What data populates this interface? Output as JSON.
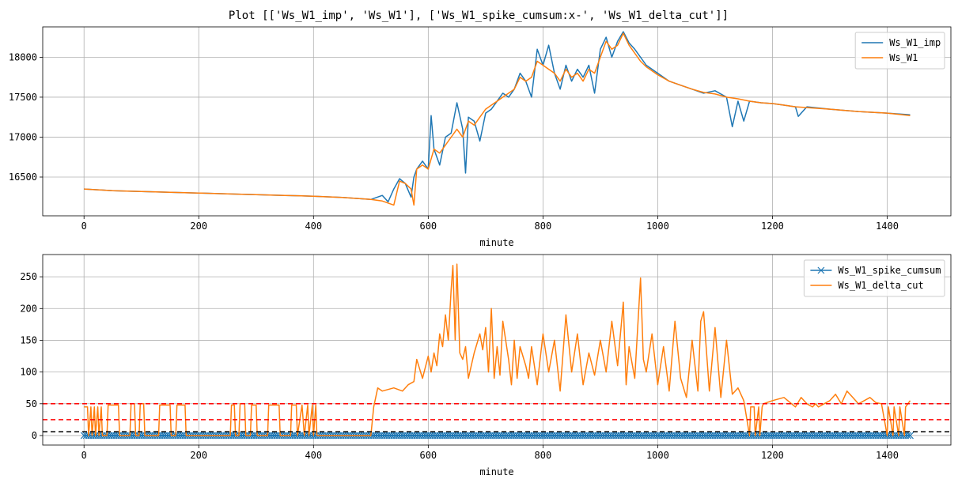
{
  "figure_title": "Plot [['Ws_W1_imp', 'Ws_W1'], ['Ws_W1_spike_cumsum:x-', 'Ws_W1_delta_cut']]",
  "colors": {
    "blue": "#1f77b4",
    "orange": "#ff7f0e",
    "red": "#ff0000",
    "black": "#000000",
    "grid": "#b0b0b0"
  },
  "chart_data": [
    {
      "type": "line",
      "xlabel": "minute",
      "ylabel": "",
      "xlim": [
        -72,
        1511
      ],
      "ylim": [
        16015,
        18380
      ],
      "xticks": [
        0,
        200,
        400,
        600,
        800,
        1000,
        1200,
        1400
      ],
      "yticks": [
        16500,
        17000,
        17500,
        18000
      ],
      "grid": true,
      "legend_position": "top-right",
      "series": [
        {
          "name": "Ws_W1_imp",
          "color": "blue",
          "x": [
            0,
            50,
            100,
            150,
            200,
            250,
            300,
            350,
            400,
            450,
            500,
            520,
            530,
            540,
            550,
            560,
            570,
            575,
            580,
            590,
            600,
            605,
            610,
            620,
            630,
            640,
            650,
            660,
            665,
            670,
            680,
            690,
            700,
            710,
            720,
            730,
            740,
            750,
            760,
            770,
            780,
            790,
            800,
            810,
            820,
            830,
            840,
            850,
            860,
            870,
            880,
            890,
            900,
            910,
            920,
            930,
            940,
            950,
            960,
            970,
            980,
            1000,
            1020,
            1040,
            1060,
            1080,
            1100,
            1120,
            1130,
            1140,
            1150,
            1160,
            1180,
            1200,
            1220,
            1240,
            1245,
            1260,
            1300,
            1350,
            1400,
            1440
          ],
          "values": [
            16350,
            16330,
            16320,
            16310,
            16300,
            16290,
            16280,
            16270,
            16260,
            16245,
            16220,
            16270,
            16190,
            16350,
            16480,
            16420,
            16250,
            16500,
            16600,
            16700,
            16600,
            17270,
            16850,
            16650,
            17000,
            17050,
            17430,
            17100,
            16550,
            17250,
            17200,
            16950,
            17300,
            17350,
            17450,
            17550,
            17500,
            17600,
            17800,
            17700,
            17500,
            18100,
            17900,
            18150,
            17800,
            17600,
            17900,
            17700,
            17850,
            17750,
            17900,
            17550,
            18100,
            18250,
            18000,
            18200,
            18320,
            18180,
            18100,
            18000,
            17900,
            17800,
            17700,
            17650,
            17600,
            17550,
            17580,
            17500,
            17130,
            17450,
            17200,
            17450,
            17430,
            17420,
            17400,
            17380,
            17260,
            17380,
            17350,
            17320,
            17300,
            17280
          ]
        },
        {
          "name": "Ws_W1",
          "color": "orange",
          "x": [
            0,
            50,
            100,
            150,
            200,
            250,
            300,
            350,
            400,
            450,
            500,
            520,
            540,
            550,
            560,
            570,
            575,
            580,
            590,
            600,
            610,
            620,
            630,
            640,
            650,
            660,
            670,
            680,
            690,
            700,
            710,
            720,
            730,
            740,
            750,
            760,
            770,
            780,
            790,
            800,
            810,
            820,
            830,
            840,
            850,
            860,
            870,
            880,
            890,
            900,
            910,
            920,
            930,
            940,
            950,
            960,
            970,
            980,
            1000,
            1020,
            1040,
            1060,
            1080,
            1100,
            1120,
            1140,
            1160,
            1180,
            1200,
            1220,
            1240,
            1260,
            1300,
            1350,
            1400,
            1440
          ],
          "values": [
            16350,
            16330,
            16320,
            16310,
            16300,
            16290,
            16280,
            16270,
            16260,
            16245,
            16220,
            16200,
            16150,
            16450,
            16420,
            16350,
            16150,
            16600,
            16650,
            16600,
            16850,
            16800,
            16900,
            17000,
            17100,
            17000,
            17200,
            17150,
            17250,
            17350,
            17400,
            17450,
            17500,
            17550,
            17600,
            17750,
            17700,
            17750,
            17950,
            17900,
            17850,
            17800,
            17700,
            17850,
            17750,
            17800,
            17700,
            17850,
            17800,
            18000,
            18200,
            18100,
            18150,
            18300,
            18150,
            18050,
            17950,
            17880,
            17780,
            17700,
            17650,
            17600,
            17560,
            17540,
            17500,
            17480,
            17450,
            17430,
            17420,
            17400,
            17380,
            17370,
            17350,
            17320,
            17300,
            17270
          ]
        }
      ]
    },
    {
      "type": "line",
      "xlabel": "minute",
      "ylabel": "",
      "xlim": [
        -72,
        1511
      ],
      "ylim": [
        -15,
        285
      ],
      "xticks": [
        0,
        200,
        400,
        600,
        800,
        1000,
        1200,
        1400
      ],
      "yticks": [
        0,
        50,
        100,
        150,
        200,
        250
      ],
      "grid": true,
      "legend_position": "top-right",
      "hlines": [
        {
          "y": 50,
          "color": "red",
          "style": "dashed"
        },
        {
          "y": 25,
          "color": "red",
          "style": "dashed"
        },
        {
          "y": 6,
          "color": "black",
          "style": "dashed"
        }
      ],
      "series": [
        {
          "name": "Ws_W1_spike_cumsum",
          "color": "blue",
          "marker": "x",
          "x_start": 0,
          "x_end": 1440,
          "x_step": 4,
          "value": 0
        },
        {
          "name": "Ws_W1_delta_cut",
          "color": "orange",
          "x": [
            0,
            6,
            8,
            12,
            14,
            18,
            20,
            24,
            26,
            30,
            32,
            40,
            42,
            60,
            62,
            80,
            82,
            88,
            90,
            96,
            98,
            104,
            106,
            130,
            132,
            150,
            152,
            160,
            162,
            176,
            178,
            182,
            184,
            255,
            257,
            262,
            264,
            270,
            272,
            280,
            282,
            290,
            292,
            300,
            302,
            320,
            322,
            340,
            342,
            360,
            362,
            370,
            372,
            380,
            384,
            390,
            392,
            398,
            400,
            404,
            406,
            500,
            505,
            512,
            520,
            540,
            555,
            565,
            575,
            580,
            590,
            600,
            605,
            610,
            615,
            620,
            625,
            630,
            635,
            640,
            643,
            647,
            650,
            655,
            660,
            665,
            670,
            680,
            690,
            695,
            700,
            705,
            710,
            715,
            720,
            725,
            730,
            740,
            745,
            750,
            755,
            760,
            770,
            775,
            780,
            790,
            800,
            810,
            820,
            830,
            840,
            850,
            860,
            870,
            880,
            890,
            900,
            910,
            920,
            930,
            940,
            945,
            950,
            960,
            970,
            975,
            980,
            990,
            1000,
            1010,
            1020,
            1030,
            1040,
            1050,
            1060,
            1070,
            1075,
            1080,
            1090,
            1100,
            1110,
            1120,
            1130,
            1140,
            1150,
            1160,
            1162,
            1168,
            1170,
            1176,
            1178,
            1182,
            1184,
            1200,
            1220,
            1240,
            1250,
            1260,
            1270,
            1275,
            1280,
            1300,
            1310,
            1320,
            1330,
            1340,
            1350,
            1360,
            1370,
            1380,
            1390,
            1400,
            1402,
            1410,
            1412,
            1420,
            1422,
            1430,
            1432,
            1440
          ],
          "values": [
            45,
            45,
            0,
            45,
            0,
            45,
            0,
            45,
            0,
            45,
            0,
            0,
            48,
            48,
            0,
            0,
            50,
            50,
            0,
            0,
            50,
            50,
            0,
            0,
            48,
            48,
            0,
            0,
            48,
            48,
            0,
            0,
            0,
            0,
            48,
            48,
            0,
            0,
            50,
            50,
            0,
            0,
            48,
            48,
            0,
            0,
            48,
            48,
            0,
            0,
            48,
            48,
            0,
            48,
            0,
            48,
            0,
            48,
            0,
            48,
            0,
            0,
            45,
            75,
            70,
            75,
            70,
            80,
            85,
            120,
            90,
            125,
            100,
            130,
            110,
            160,
            140,
            190,
            150,
            230,
            268,
            150,
            270,
            130,
            120,
            140,
            90,
            130,
            160,
            135,
            170,
            100,
            200,
            90,
            140,
            95,
            180,
            120,
            80,
            150,
            90,
            140,
            110,
            90,
            140,
            80,
            160,
            100,
            150,
            70,
            190,
            100,
            160,
            80,
            130,
            95,
            150,
            100,
            180,
            110,
            210,
            80,
            140,
            90,
            248,
            120,
            100,
            160,
            80,
            140,
            70,
            180,
            90,
            60,
            150,
            70,
            180,
            195,
            70,
            170,
            60,
            150,
            65,
            75,
            55,
            0,
            45,
            45,
            0,
            45,
            0,
            45,
            50,
            55,
            60,
            45,
            60,
            50,
            45,
            50,
            45,
            55,
            65,
            50,
            70,
            60,
            50,
            55,
            60,
            52,
            50,
            0,
            45,
            0,
            45,
            0,
            45,
            0,
            45,
            55
          ]
        }
      ]
    }
  ]
}
